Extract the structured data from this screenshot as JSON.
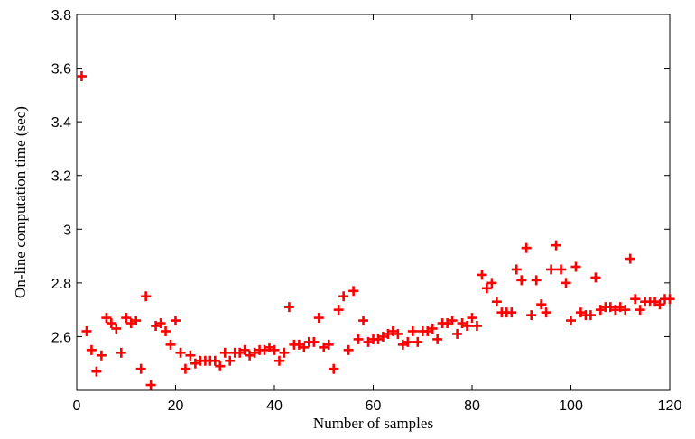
{
  "chart_data": {
    "type": "scatter",
    "xlabel": "Number of samples",
    "ylabel": "On-line computation time (sec)",
    "xlim": [
      0,
      120
    ],
    "ylim": [
      2.4,
      3.8
    ],
    "xticks": [
      0,
      20,
      40,
      60,
      80,
      100,
      120
    ],
    "yticks": [
      2.6,
      2.8,
      3,
      3.2,
      3.4,
      3.6,
      3.8
    ],
    "xtick_labels": [
      "0",
      "20",
      "40",
      "60",
      "80",
      "100",
      "120"
    ],
    "ytick_labels": [
      "2.6",
      "2.8",
      "3",
      "3.2",
      "3.4",
      "3.6",
      "3.8"
    ],
    "marker": "+",
    "marker_color": "#ff0000",
    "grid": false,
    "series": [
      {
        "x": [
          1,
          2,
          3,
          4,
          5,
          6,
          7,
          8,
          9,
          10,
          11,
          12,
          13,
          14,
          15,
          16,
          17,
          18,
          19,
          20,
          21,
          22,
          23,
          24,
          25,
          26,
          27,
          28,
          29,
          30,
          31,
          32,
          33,
          34,
          35,
          36,
          37,
          38,
          39,
          40,
          41,
          42,
          43,
          44,
          45,
          46,
          47,
          48,
          49,
          50,
          51,
          52,
          53,
          54,
          55,
          56,
          57,
          58,
          59,
          60,
          61,
          62,
          63,
          64,
          65,
          66,
          67,
          68,
          69,
          70,
          71,
          72,
          73,
          74,
          75,
          76,
          77,
          78,
          79,
          80,
          81,
          82,
          83,
          84,
          85,
          86,
          87,
          88,
          89,
          90,
          91,
          92,
          93,
          94,
          95,
          96,
          97,
          98,
          99,
          100,
          101,
          102,
          103,
          104,
          105,
          106,
          107,
          108,
          109,
          110,
          111,
          112,
          113,
          114,
          115,
          116,
          117,
          118,
          119,
          120
        ],
        "y": [
          3.57,
          2.62,
          2.55,
          2.47,
          2.53,
          2.67,
          2.65,
          2.63,
          2.54,
          2.67,
          2.65,
          2.66,
          2.48,
          2.75,
          2.42,
          2.64,
          2.65,
          2.62,
          2.57,
          2.66,
          2.54,
          2.48,
          2.53,
          2.5,
          2.51,
          2.51,
          2.51,
          2.51,
          2.49,
          2.54,
          2.51,
          2.54,
          2.54,
          2.55,
          2.53,
          2.54,
          2.55,
          2.55,
          2.56,
          2.55,
          2.51,
          2.54,
          2.71,
          2.57,
          2.57,
          2.56,
          2.58,
          2.58,
          2.67,
          2.56,
          2.57,
          2.48,
          2.7,
          2.75,
          2.55,
          2.77,
          2.59,
          2.66,
          2.58,
          2.59,
          2.59,
          2.6,
          2.61,
          2.62,
          2.61,
          2.57,
          2.58,
          2.62,
          2.58,
          2.62,
          2.62,
          2.63,
          2.59,
          2.65,
          2.65,
          2.66,
          2.61,
          2.65,
          2.64,
          2.67,
          2.64,
          2.83,
          2.78,
          2.8,
          2.73,
          2.69,
          2.69,
          2.69,
          2.85,
          2.81,
          2.93,
          2.68,
          2.81,
          2.72,
          2.69,
          2.85,
          2.94,
          2.85,
          2.8,
          2.66,
          2.86,
          2.69,
          2.68,
          2.68,
          2.82,
          2.7,
          2.71,
          2.71,
          2.7,
          2.71,
          2.7,
          2.89,
          2.74,
          2.7,
          2.73,
          2.73,
          2.73,
          2.72,
          2.74,
          2.74
        ]
      }
    ]
  }
}
